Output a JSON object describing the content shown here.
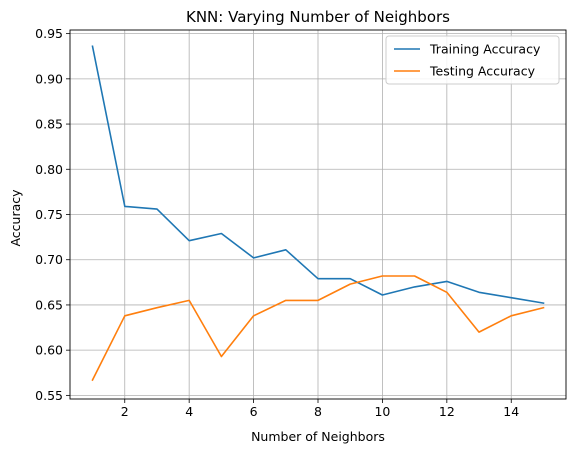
{
  "chart_data": {
    "type": "line",
    "title": "KNN: Varying Number of Neighbors",
    "xlabel": "Number of Neighbors",
    "ylabel": "Accuracy",
    "xlim": [
      0.3,
      15.7
    ],
    "ylim": [
      0.546,
      0.954
    ],
    "xticks": [
      2,
      4,
      6,
      8,
      10,
      12,
      14
    ],
    "yticks": [
      0.55,
      0.6,
      0.65,
      0.7,
      0.75,
      0.8,
      0.85,
      0.9,
      0.95
    ],
    "ytick_labels": [
      "0.55",
      "0.60",
      "0.65",
      "0.70",
      "0.75",
      "0.80",
      "0.85",
      "0.90",
      "0.95"
    ],
    "grid": true,
    "legend_position": "top-right",
    "x": [
      1,
      2,
      3,
      4,
      5,
      6,
      7,
      8,
      9,
      10,
      11,
      12,
      13,
      14,
      15
    ],
    "series": [
      {
        "name": "Training Accuracy",
        "color": "#1f77b4",
        "values": [
          0.936,
          0.759,
          0.756,
          0.721,
          0.729,
          0.702,
          0.711,
          0.679,
          0.679,
          0.661,
          0.67,
          0.676,
          0.664,
          0.658,
          0.652
        ]
      },
      {
        "name": "Testing Accuracy",
        "color": "#ff7f0e",
        "values": [
          0.567,
          0.638,
          0.647,
          0.655,
          0.593,
          0.638,
          0.655,
          0.655,
          0.673,
          0.682,
          0.682,
          0.664,
          0.62,
          0.638,
          0.647
        ]
      }
    ]
  }
}
